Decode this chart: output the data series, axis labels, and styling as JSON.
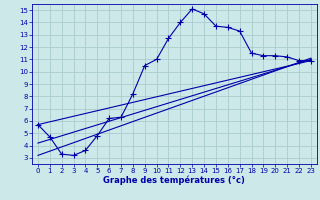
{
  "title": "Graphe des températures (°c)",
  "bg_color": "#cce8e8",
  "grid_color": "#aacccc",
  "line_color": "#0000aa",
  "xlim": [
    -0.5,
    23.5
  ],
  "ylim": [
    2.5,
    15.5
  ],
  "xticks": [
    0,
    1,
    2,
    3,
    4,
    5,
    6,
    7,
    8,
    9,
    10,
    11,
    12,
    13,
    14,
    15,
    16,
    17,
    18,
    19,
    20,
    21,
    22,
    23
  ],
  "yticks": [
    3,
    4,
    5,
    6,
    7,
    8,
    9,
    10,
    11,
    12,
    13,
    14,
    15
  ],
  "line1_x": [
    0,
    1,
    2,
    3,
    4,
    5,
    6,
    7,
    8,
    9,
    10,
    11,
    12,
    13,
    14,
    15,
    16,
    17,
    18,
    19,
    20,
    21,
    22,
    23
  ],
  "line1_y": [
    5.7,
    4.7,
    3.3,
    3.2,
    3.6,
    4.8,
    6.2,
    6.3,
    8.2,
    10.5,
    11.0,
    12.7,
    14.0,
    15.1,
    14.7,
    13.7,
    13.6,
    13.3,
    11.5,
    11.3,
    11.3,
    11.2,
    10.9,
    10.9
  ],
  "line2_x": [
    0,
    23
  ],
  "line2_y": [
    5.7,
    10.9
  ],
  "line3_x": [
    0,
    23
  ],
  "line3_y": [
    3.2,
    11.1
  ],
  "line4_x": [
    0,
    23
  ],
  "line4_y": [
    4.2,
    11.0
  ],
  "marker_size": 2.0,
  "line_width": 0.8,
  "tick_fontsize": 5.0,
  "xlabel_fontsize": 6.0
}
